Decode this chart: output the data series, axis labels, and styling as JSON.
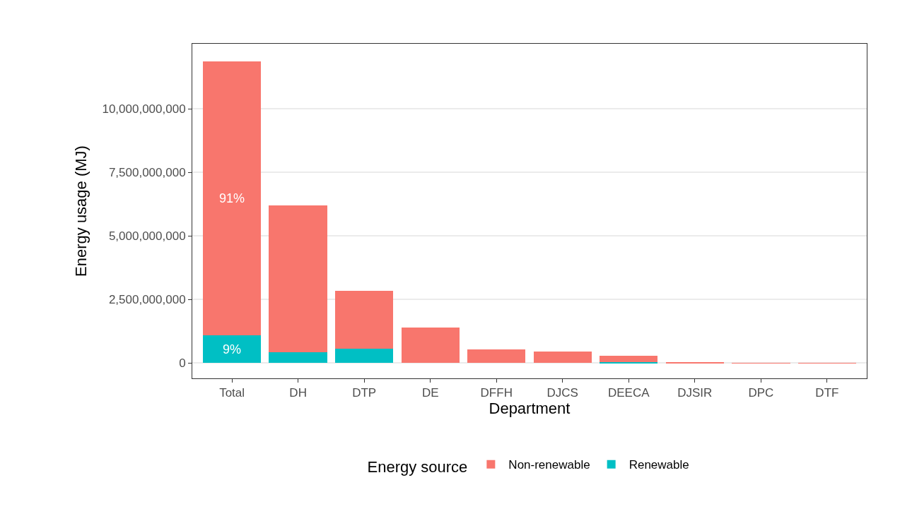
{
  "chart_data": {
    "type": "bar",
    "stacked": true,
    "xlabel": "Department",
    "ylabel": "Energy usage (MJ)",
    "legend_title": "Energy source",
    "categories": [
      "Total",
      "DH",
      "DTP",
      "DE",
      "DFFH",
      "DJCS",
      "DEECA",
      "DJSIR",
      "DPC",
      "DTF"
    ],
    "series": [
      {
        "name": "Renewable",
        "color": "#00bfc4",
        "values": [
          1080000000,
          430000000,
          570000000,
          null,
          0,
          0,
          50000000,
          0,
          0,
          0
        ]
      },
      {
        "name": "Non-renewable",
        "color": "#f8766d",
        "values": [
          10790000000,
          5760000000,
          2260000000,
          1390000000,
          540000000,
          460000000,
          250000000,
          20000000,
          10000000,
          10000000
        ]
      }
    ],
    "ylim": [
      -600000000,
      12560000000
    ],
    "yticks": [
      {
        "value": 0,
        "label": "0"
      },
      {
        "value": 2500000000,
        "label": "2,500,000,000"
      },
      {
        "value": 5000000000,
        "label": "5,000,000,000"
      },
      {
        "value": 7500000000,
        "label": "7,500,000,000"
      },
      {
        "value": 10000000000,
        "label": "10,000,000,000"
      }
    ],
    "grid": "y",
    "legend": "bottom",
    "annotations": [
      "91%",
      "9%"
    ]
  }
}
